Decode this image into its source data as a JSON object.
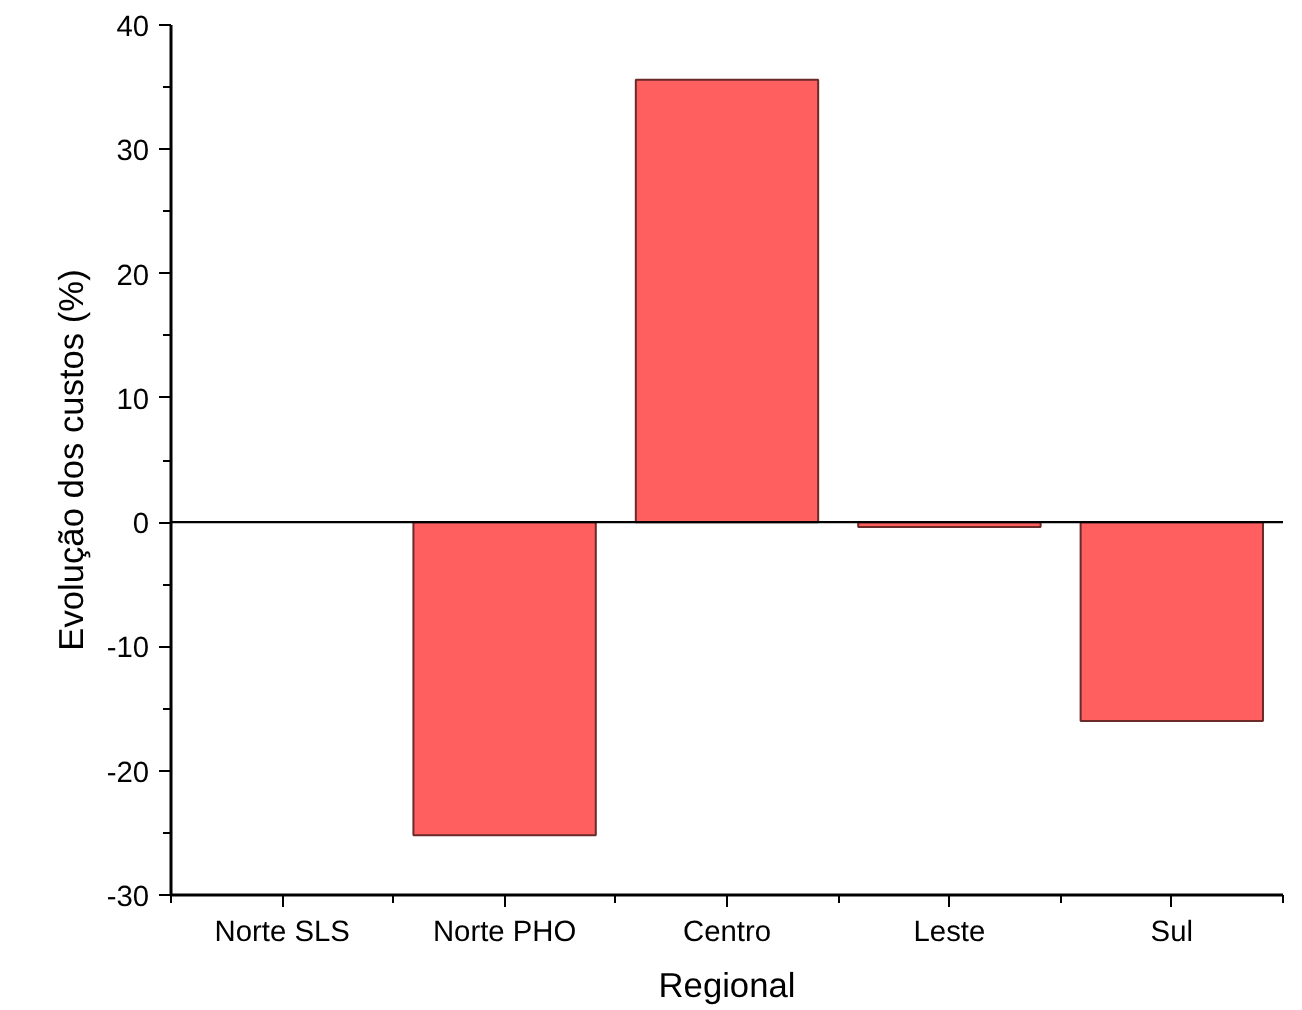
{
  "chart_data": {
    "type": "bar",
    "xlabel": "Regional",
    "ylabel": "Evolução dos custos (%)",
    "categories": [
      "Norte SLS",
      "Norte PHO",
      "Centro",
      "Leste",
      "Sul"
    ],
    "values": [
      null,
      -25.2,
      35.6,
      -0.4,
      -16.0
    ],
    "color": "#ff5f5f",
    "ylim": [
      -30,
      40
    ],
    "yticks": [
      -30,
      -20,
      -10,
      0,
      10,
      20,
      30,
      40
    ],
    "ref_lines": [
      {
        "axis": "y",
        "value": 0,
        "color": "#000000"
      }
    ],
    "grid": false
  }
}
